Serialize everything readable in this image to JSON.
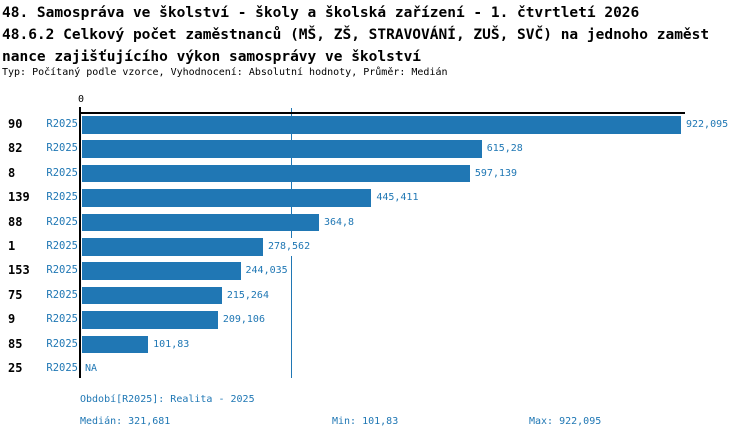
{
  "header": {
    "title_line1": "48. Samospráva ve školství - školy a školská zařízení - 1. čtvrtletí 2026",
    "title_line2": "48.6.2 Celkový počet zaměstnanců (MŠ, ZŠ, STRAVOVÁNÍ, ZUŠ, SVČ) na jednoho zaměst",
    "title_line3": "nance zajišťujícího výkon samosprávy ve školství",
    "meta_line": "Typ: Počítaný podle vzorce, Vyhodnocení: Absolutní hodnoty, Průměr: Medián"
  },
  "chart_data": {
    "type": "bar",
    "orientation": "horizontal",
    "origin_tick_label": "0",
    "series_name": "R2025",
    "categories": [
      "90",
      "82",
      "8",
      "139",
      "88",
      "1",
      "153",
      "75",
      "9",
      "85",
      "25"
    ],
    "rows": [
      {
        "category": "90",
        "period": "R2025",
        "value": 922.095,
        "value_label": "922,095"
      },
      {
        "category": "82",
        "period": "R2025",
        "value": 615.28,
        "value_label": "615,28"
      },
      {
        "category": "8",
        "period": "R2025",
        "value": 597.139,
        "value_label": "597,139"
      },
      {
        "category": "139",
        "period": "R2025",
        "value": 445.411,
        "value_label": "445,411"
      },
      {
        "category": "88",
        "period": "R2025",
        "value": 364.8,
        "value_label": "364,8"
      },
      {
        "category": "1",
        "period": "R2025",
        "value": 278.562,
        "value_label": "278,562"
      },
      {
        "category": "153",
        "period": "R2025",
        "value": 244.035,
        "value_label": "244,035"
      },
      {
        "category": "75",
        "period": "R2025",
        "value": 215.264,
        "value_label": "215,264"
      },
      {
        "category": "9",
        "period": "R2025",
        "value": 209.106,
        "value_label": "209,106"
      },
      {
        "category": "85",
        "period": "R2025",
        "value": 101.83,
        "value_label": "101,83"
      },
      {
        "category": "25",
        "period": "R2025",
        "value": null,
        "value_label": "NA"
      }
    ],
    "median_value": 321.681,
    "min_value": 101.83,
    "max_value": 922.095,
    "xlim": [
      0,
      922.095
    ],
    "grid": false,
    "colors": {
      "bar": "#2077b4",
      "text_blue": "#1f77b4",
      "axis": "#000000"
    }
  },
  "footer": {
    "period_line": "Období[R2025]: Realita - 2025",
    "median_label": "Medián: 321,681",
    "min_label": "Min: 101,83",
    "max_label": "Max: 922,095"
  }
}
